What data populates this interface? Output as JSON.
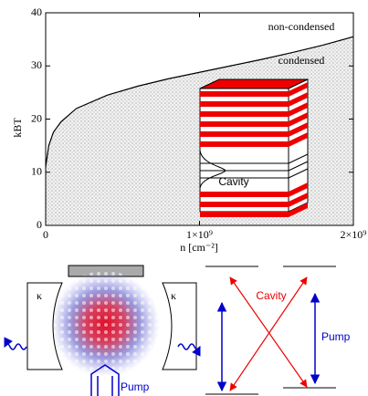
{
  "chart_data": {
    "type": "line",
    "x": [
      0,
      20000000,
      50000000,
      100000000,
      200000000,
      400000000,
      600000000,
      800000000,
      1000000000,
      1200000000,
      1400000000,
      1600000000,
      1800000000,
      2000000000
    ],
    "values": [
      11,
      15,
      17.5,
      19.5,
      22,
      24.5,
      26.2,
      27.6,
      28.8,
      30,
      31.2,
      32.5,
      33.9,
      35.5
    ],
    "color": "#000000",
    "xlim": [
      0,
      2000000000
    ],
    "ylim": [
      0,
      40
    ],
    "xticks": [
      0,
      {
        "value": 1000000000,
        "label": "1×10⁹"
      },
      {
        "value": 2000000000,
        "label": "2×10⁹"
      }
    ],
    "yticks": [
      0,
      10,
      20,
      30,
      40
    ],
    "xlabel": "n [cm⁻²]",
    "ylabel": "kBT",
    "annotations": [
      "non-condensed",
      "condensed",
      "Cavity"
    ]
  },
  "diagram": {
    "kappa_left": "κ",
    "kappa_right": "κ",
    "pump_left": "Pump",
    "cavity": "Cavity",
    "pump_right": "Pump"
  }
}
